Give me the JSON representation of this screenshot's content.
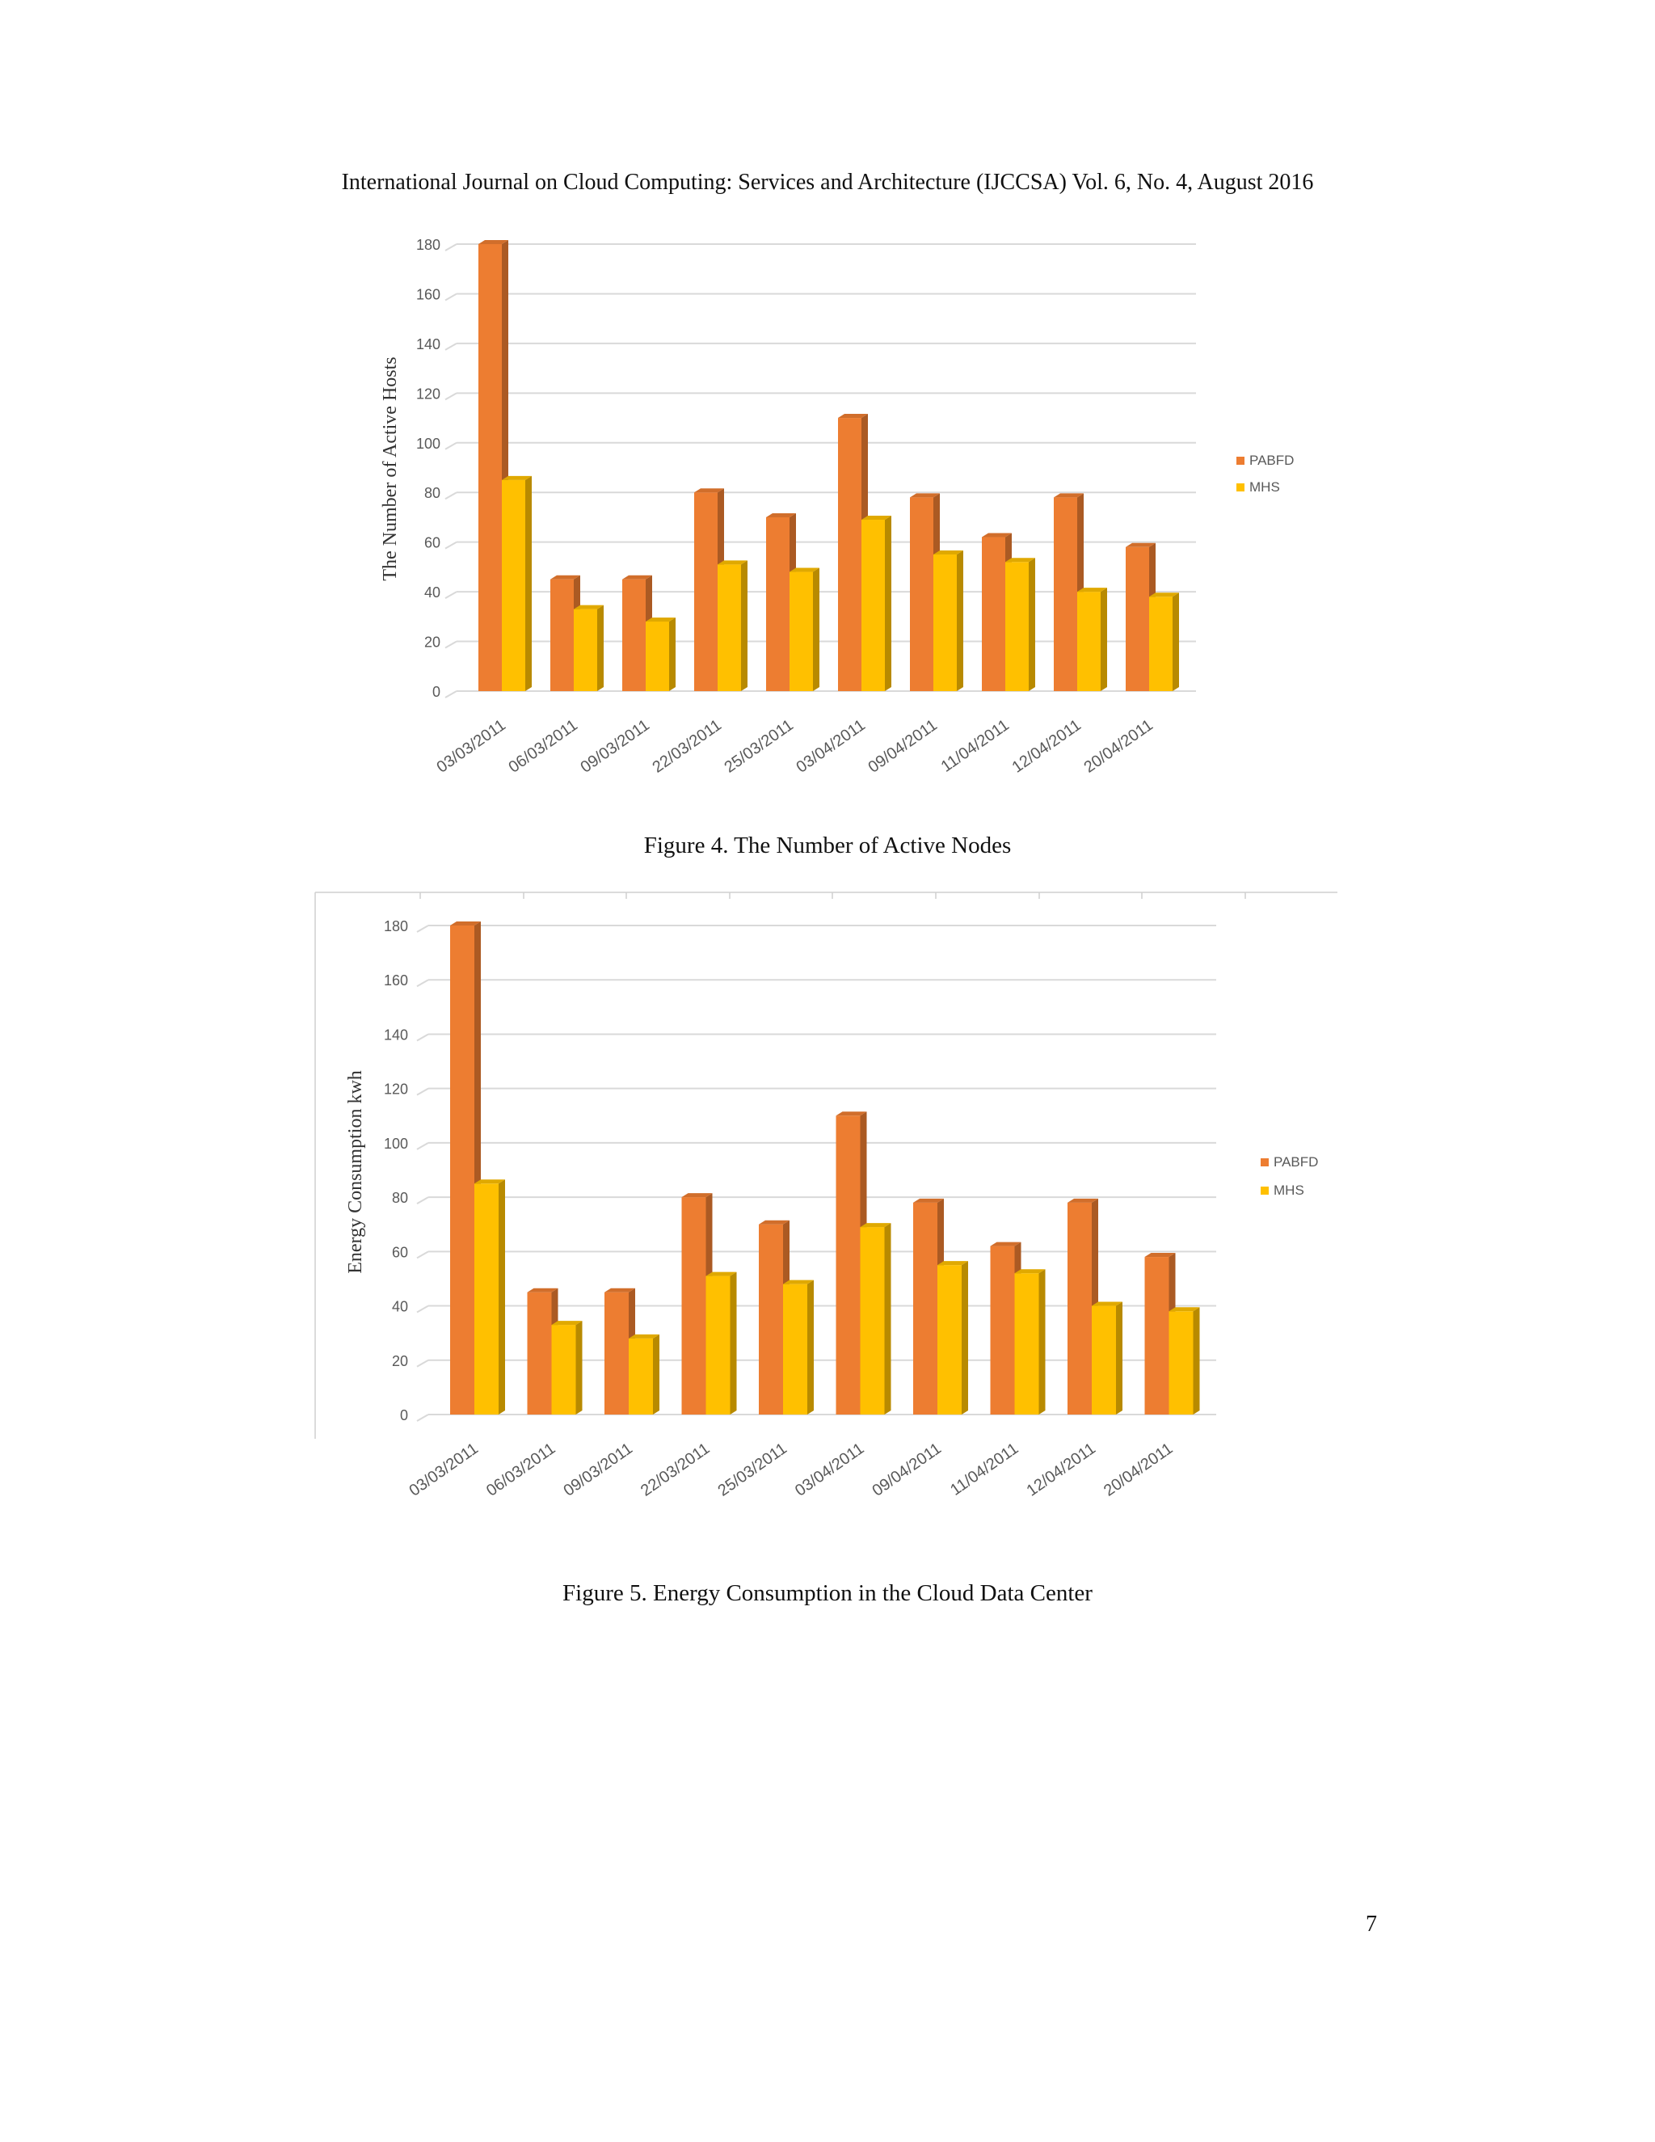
{
  "header": "International Journal on Cloud Computing: Services and Architecture (IJCCSA) Vol. 6, No. 4, August 2016",
  "page_number": "7",
  "colors": {
    "pabfd": "#ED7D31",
    "mhs": "#FFC000",
    "grid": "#D9D9D9",
    "tick": "#595959"
  },
  "chart_data": [
    {
      "type": "bar",
      "caption": "Figure 4.  The Number of Active Nodes",
      "ylabel": "The Number of Active Hosts",
      "xlabel": "",
      "ylim": [
        0,
        180
      ],
      "yticks": [
        "0",
        "20",
        "40",
        "60",
        "80",
        "100",
        "120",
        "140",
        "160",
        "180"
      ],
      "grid": true,
      "legend_position": "right",
      "categories": [
        "03/03/2011",
        "06/03/2011",
        "09/03/2011",
        "22/03/2011",
        "25/03/2011",
        "03/04/2011",
        "09/04/2011",
        "11/04/2011",
        "12/04/2011",
        "20/04/2011"
      ],
      "series": [
        {
          "name": "PABFD",
          "values": [
            180,
            45,
            45,
            80,
            70,
            110,
            78,
            62,
            78,
            58
          ]
        },
        {
          "name": "MHS",
          "values": [
            85,
            33,
            28,
            51,
            48,
            69,
            55,
            52,
            40,
            38
          ]
        }
      ]
    },
    {
      "type": "bar",
      "caption": "Figure 5.  Energy Consumption in the Cloud Data Center",
      "ylabel": "Energy Consumption kwh",
      "xlabel": "",
      "ylim": [
        0,
        180
      ],
      "yticks": [
        "0",
        "20",
        "40",
        "60",
        "80",
        "100",
        "120",
        "140",
        "160",
        "180"
      ],
      "grid": true,
      "legend_position": "right",
      "categories": [
        "03/03/2011",
        "06/03/2011",
        "09/03/2011",
        "22/03/2011",
        "25/03/2011",
        "03/04/2011",
        "09/04/2011",
        "11/04/2011",
        "12/04/2011",
        "20/04/2011"
      ],
      "series": [
        {
          "name": "PABFD",
          "values": [
            180,
            45,
            45,
            80,
            70,
            110,
            78,
            62,
            78,
            58
          ]
        },
        {
          "name": "MHS",
          "values": [
            85,
            33,
            28,
            51,
            48,
            69,
            55,
            52,
            40,
            38
          ]
        }
      ]
    }
  ]
}
